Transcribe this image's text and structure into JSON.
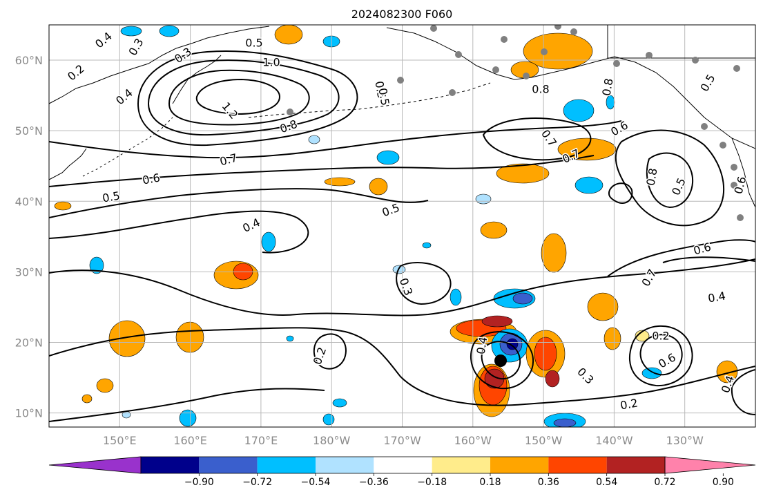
{
  "title": "2024082300 F060",
  "chart_data": {
    "type": "map",
    "title": "2024082300 F060",
    "lon_ticks": [
      "150°E",
      "160°E",
      "170°E",
      "180°W",
      "170°W",
      "160°W",
      "150°W",
      "140°W",
      "130°W"
    ],
    "lat_ticks": [
      "10°N",
      "20°N",
      "30°N",
      "40°N",
      "50°N",
      "60°N"
    ],
    "grid": true,
    "colorbar": {
      "orientation": "horizontal",
      "extend": "both",
      "levels": [
        -0.9,
        -0.72,
        -0.54,
        -0.36,
        -0.18,
        0.18,
        0.36,
        0.54,
        0.72,
        0.9
      ],
      "labels": [
        "−0.90",
        "−0.72",
        "−0.54",
        "−0.36",
        "−0.18",
        "0.18",
        "0.36",
        "0.54",
        "0.72",
        "0.90"
      ],
      "colors": [
        "#9932cc",
        "#00008b",
        "#3a5fcd",
        "#00bfff",
        "#b0e2ff",
        "#ffffff",
        "#ffec8b",
        "#ffa500",
        "#ff4500",
        "#b22222",
        "#ff82ab"
      ]
    },
    "contour_labels": [
      "0.4",
      "0.3",
      "0.2",
      "0.4",
      "0.3",
      "0.5",
      "1.0",
      "1.2",
      "0.8",
      "0.7",
      "0.6",
      "0.5",
      "0.4",
      "0.5",
      "0.5",
      "0.5",
      "0.8",
      "0.7",
      "0.6",
      "0.7",
      "0.8",
      "0.5",
      "0.6",
      "0.4",
      "0.7",
      "0.3",
      "0.2",
      "0.4",
      "0.3",
      "0.2",
      "0.2",
      "0.6",
      "0.4",
      "0.8",
      "0.6",
      "0.5"
    ],
    "storm_center": {
      "lon": -156,
      "lat": 17.5
    }
  }
}
